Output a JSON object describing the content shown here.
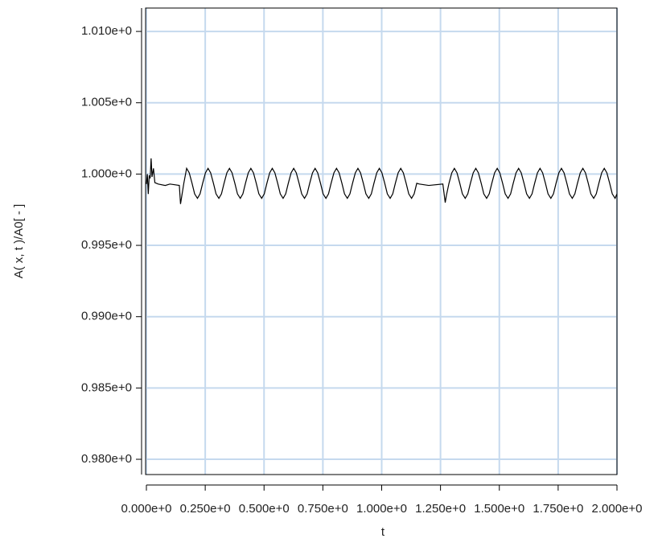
{
  "chart_data": {
    "type": "line",
    "y_label": "A( x, t )/A0[ - ]",
    "x_label": "t",
    "color": "#000000",
    "grid": true,
    "grid_color": "#c5d9ee",
    "xlim": [
      0,
      2.0
    ],
    "ylim": [
      0.97893,
      1.01164
    ],
    "xticks": [
      {
        "value": 0,
        "label": "0.000e+0"
      },
      {
        "value": 0.25,
        "label": "0.250e+0"
      },
      {
        "value": 0.5,
        "label": "0.500e+0"
      },
      {
        "value": 0.75,
        "label": "0.750e+0"
      },
      {
        "value": 1.0,
        "label": "1.000e+0"
      },
      {
        "value": 1.25,
        "label": "1.250e+0"
      },
      {
        "value": 1.5,
        "label": "1.500e+0"
      },
      {
        "value": 1.75,
        "label": "1.750e+0"
      },
      {
        "value": 2.0,
        "label": "2.000e+0"
      }
    ],
    "yticks": [
      {
        "value": 0.98,
        "label": "0.980e+0"
      },
      {
        "value": 0.985,
        "label": "0.985e+0"
      },
      {
        "value": 0.99,
        "label": "0.990e+0"
      },
      {
        "value": 0.995,
        "label": "0.995e+0"
      },
      {
        "value": 1.0,
        "label": "1.000e+0"
      },
      {
        "value": 1.005,
        "label": "1.005e+0"
      },
      {
        "value": 1.01,
        "label": "1.010e+0"
      }
    ],
    "x": [
      0,
      0.004,
      0.008,
      0.012,
      0.016,
      0.02,
      0.024,
      0.03,
      0.036,
      0.05,
      0.08,
      0.1,
      0.14,
      0.145,
      0.159,
      0.171,
      0.182,
      0.194,
      0.205,
      0.217,
      0.228,
      0.239,
      0.251,
      0.262,
      0.273,
      0.285,
      0.296,
      0.308,
      0.319,
      0.33,
      0.342,
      0.353,
      0.364,
      0.376,
      0.387,
      0.399,
      0.41,
      0.421,
      0.433,
      0.444,
      0.455,
      0.467,
      0.478,
      0.49,
      0.501,
      0.512,
      0.524,
      0.535,
      0.546,
      0.558,
      0.569,
      0.581,
      0.592,
      0.603,
      0.615,
      0.626,
      0.637,
      0.649,
      0.66,
      0.672,
      0.683,
      0.694,
      0.706,
      0.717,
      0.728,
      0.74,
      0.751,
      0.763,
      0.774,
      0.785,
      0.797,
      0.808,
      0.819,
      0.831,
      0.842,
      0.854,
      0.865,
      0.876,
      0.888,
      0.899,
      0.91,
      0.922,
      0.933,
      0.945,
      0.956,
      0.967,
      0.979,
      0.99,
      1.001,
      1.013,
      1.024,
      1.036,
      1.047,
      1.058,
      1.07,
      1.081,
      1.092,
      1.104,
      1.115,
      1.127,
      1.138,
      1.149,
      1.16,
      1.2,
      1.26,
      1.27,
      1.275,
      1.286,
      1.298,
      1.309,
      1.32,
      1.332,
      1.343,
      1.355,
      1.366,
      1.377,
      1.389,
      1.4,
      1.411,
      1.423,
      1.434,
      1.446,
      1.457,
      1.468,
      1.48,
      1.491,
      1.502,
      1.514,
      1.525,
      1.537,
      1.548,
      1.559,
      1.571,
      1.582,
      1.593,
      1.605,
      1.616,
      1.628,
      1.639,
      1.65,
      1.662,
      1.673,
      1.684,
      1.696,
      1.707,
      1.719,
      1.73,
      1.741,
      1.753,
      1.764,
      1.775,
      1.787,
      1.798,
      1.81,
      1.821,
      1.832,
      1.844,
      1.855,
      1.866,
      1.878,
      1.889,
      1.901,
      1.912,
      1.923,
      1.935,
      1.946,
      1.957,
      1.969,
      1.98,
      1.992,
      2.0
    ],
    "values": [
      0.9993,
      1.0,
      0.9986,
      0.9999,
      0.9997,
      1.0011,
      0.9998,
      1.0004,
      0.9994,
      0.9993,
      0.9992,
      0.9993,
      0.9992,
      0.9979,
      0.99935,
      1.0004,
      1.00009,
      0.99935,
      0.99861,
      0.9983,
      0.99861,
      0.99935,
      1.00009,
      1.0004,
      1.00009,
      0.99935,
      0.99861,
      0.9983,
      0.99861,
      0.99935,
      1.00009,
      1.0004,
      1.00009,
      0.99935,
      0.99861,
      0.9983,
      0.99861,
      0.99935,
      1.00009,
      1.0004,
      1.00009,
      0.99935,
      0.99861,
      0.9983,
      0.99861,
      0.99935,
      1.00009,
      1.0004,
      1.00009,
      0.99935,
      0.99861,
      0.9983,
      0.99861,
      0.99935,
      1.00009,
      1.0004,
      1.00009,
      0.99935,
      0.99861,
      0.9983,
      0.99861,
      0.99935,
      1.00009,
      1.0004,
      1.00009,
      0.99935,
      0.99861,
      0.9983,
      0.99861,
      0.99935,
      1.00009,
      1.0004,
      1.00009,
      0.99935,
      0.99861,
      0.9983,
      0.99861,
      0.99935,
      1.00009,
      1.0004,
      1.00009,
      0.99935,
      0.99861,
      0.9983,
      0.99861,
      0.99935,
      1.00009,
      1.0004,
      1.00009,
      0.99935,
      0.99861,
      0.9983,
      0.99861,
      0.99935,
      1.00009,
      1.0004,
      1.00009,
      0.99935,
      0.99861,
      0.9983,
      0.99861,
      0.99935,
      0.9993,
      0.9992,
      0.9993,
      0.998,
      0.9985,
      0.99935,
      1.00009,
      1.0004,
      1.00009,
      0.99935,
      0.99861,
      0.9983,
      0.99861,
      0.99935,
      1.00009,
      1.0004,
      1.00009,
      0.99935,
      0.99861,
      0.9983,
      0.99861,
      0.99935,
      1.00009,
      1.0004,
      1.00009,
      0.99935,
      0.99861,
      0.9983,
      0.99861,
      0.99935,
      1.00009,
      1.0004,
      1.00009,
      0.99935,
      0.99861,
      0.9983,
      0.99861,
      0.99935,
      1.00009,
      1.0004,
      1.00009,
      0.99935,
      0.99861,
      0.9983,
      0.99861,
      0.99935,
      1.00009,
      1.0004,
      1.00009,
      0.99935,
      0.99861,
      0.9983,
      0.99861,
      0.99935,
      1.00009,
      1.0004,
      1.00009,
      0.99935,
      0.99861,
      0.9983,
      0.99861,
      0.99935,
      1.00009,
      1.0004,
      1.00009,
      0.99935,
      0.99861,
      0.9983,
      0.99861
    ]
  }
}
